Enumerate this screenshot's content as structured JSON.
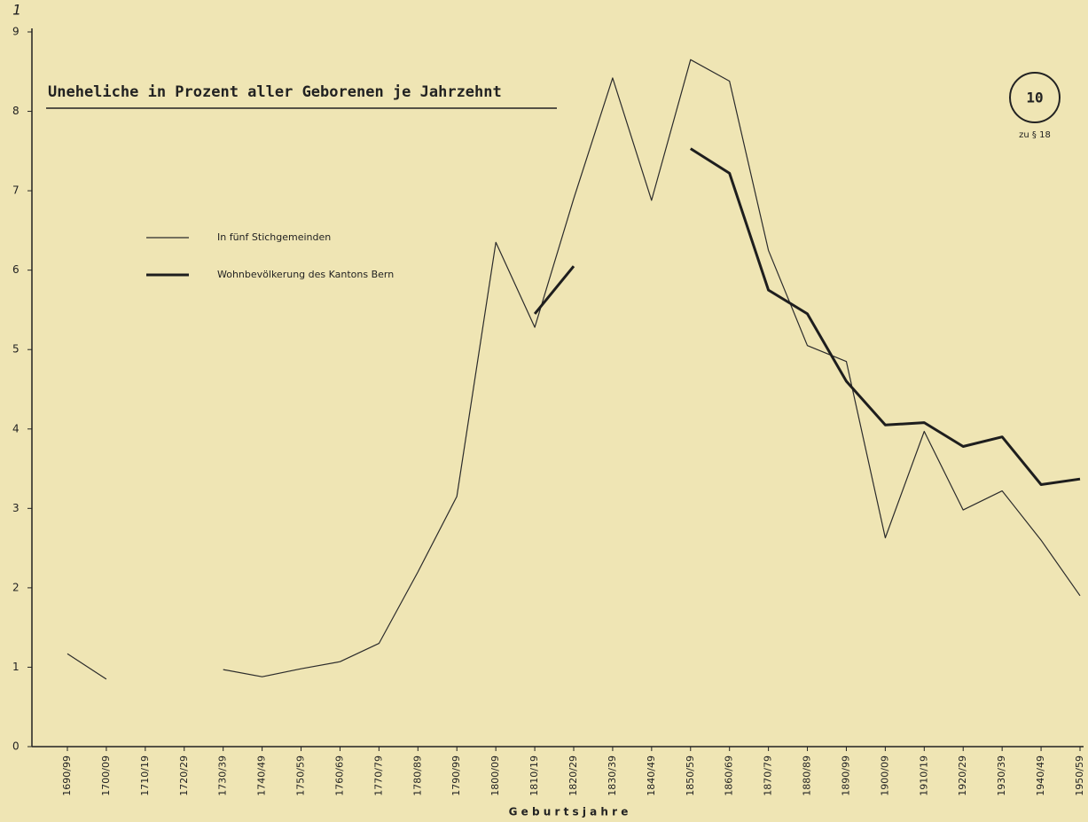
{
  "chart_data": {
    "type": "line",
    "title": "Uneheliche in Prozent aller Geborenen je Jahrzehnt",
    "x_label": "G e b u r t s j a h r e",
    "badge": "10",
    "badge_note": "zu § 18",
    "page_mark": "1",
    "categories": [
      "1690/99",
      "1700/09",
      "1710/19",
      "1720/29",
      "1730/39",
      "1740/49",
      "1750/59",
      "1760/69",
      "1770/79",
      "1780/89",
      "1790/99",
      "1800/09",
      "1810/19",
      "1820/29",
      "1830/39",
      "1840/49",
      "1850/59",
      "1860/69",
      "1870/79",
      "1880/89",
      "1890/99",
      "1900/09",
      "1910/19",
      "1920/29",
      "1930/39",
      "1940/49",
      "1950/59"
    ],
    "series": [
      {
        "name": "In fünf Stichgemeinden",
        "color": "#2b2b2b",
        "width": 1.2,
        "values": [
          1.17,
          0.85,
          null,
          null,
          0.97,
          0.88,
          0.98,
          1.07,
          1.3,
          2.2,
          3.15,
          6.35,
          5.28,
          6.9,
          8.42,
          6.88,
          8.65,
          8.38,
          6.25,
          5.05,
          4.85,
          2.63,
          3.97,
          2.98,
          3.22,
          2.6,
          1.9
        ]
      },
      {
        "name": "Wohnbevölkerung des Kantons Bern",
        "color": "#1e1e1e",
        "width": 3,
        "values": [
          null,
          null,
          null,
          null,
          null,
          null,
          null,
          null,
          null,
          null,
          null,
          null,
          5.45,
          6.05,
          null,
          null,
          7.53,
          7.22,
          5.75,
          5.45,
          4.6,
          4.05,
          4.08,
          3.78,
          3.9,
          3.3,
          3.37
        ]
      }
    ],
    "ylim": [
      0,
      9
    ],
    "yticks": [
      0,
      1,
      2,
      3,
      4,
      5,
      6,
      7,
      8,
      9
    ]
  }
}
